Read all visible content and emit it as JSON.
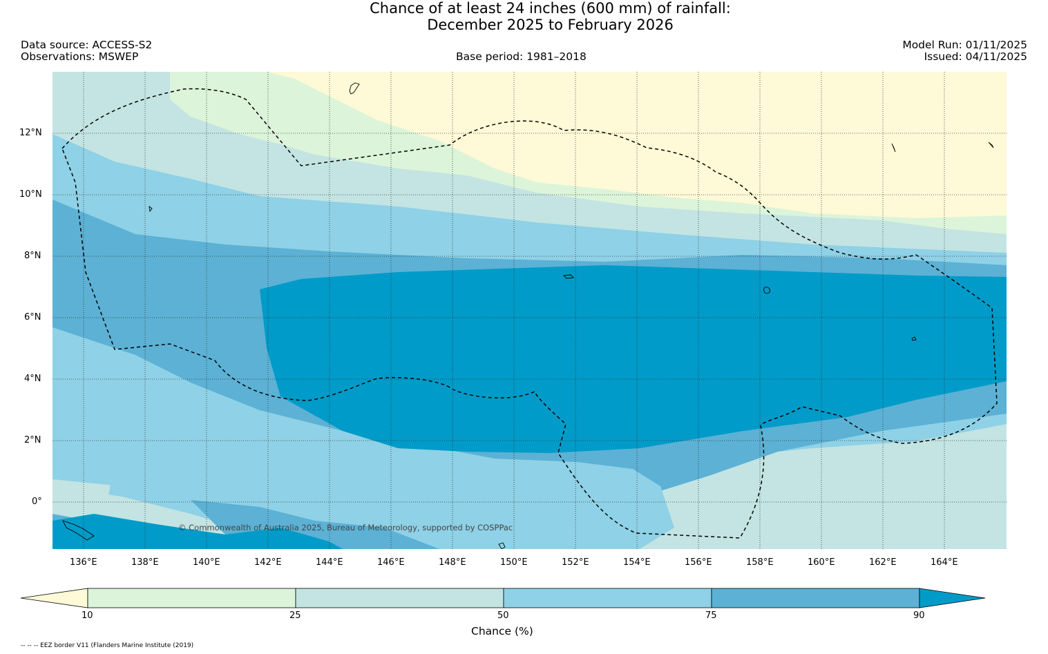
{
  "header": {
    "title_line1": "Chance of at least 24 inches (600  mm) of rainfall:",
    "title_line2": "December 2025 to February 2026",
    "data_source": "Data source: ACCESS-S2",
    "observations": "Observations: MSWEP",
    "base_period": "Base period: 1981–2018",
    "model_run": "Model Run: 01/11/2025",
    "issued": "Issued: 04/11/2025"
  },
  "map": {
    "lon_labels": [
      "136°E",
      "138°E",
      "140°E",
      "142°E",
      "144°E",
      "146°E",
      "148°E",
      "150°E",
      "152°E",
      "154°E",
      "156°E",
      "158°E",
      "160°E",
      "162°E",
      "164°E"
    ],
    "lat_labels": [
      "12°N",
      "10°N",
      "8°N",
      "6°N",
      "4°N",
      "2°N",
      "0°"
    ],
    "credit": "© Commonwealth of Australia 2025, Bureau of Meteorology, supported by COSPPac"
  },
  "colorbar": {
    "title": "Chance (%)",
    "ticks": [
      "10",
      "25",
      "50",
      "75",
      "90"
    ],
    "colors": [
      "#fef9d6",
      "#dcf4d9",
      "#c3e4e3",
      "#8fd1e6",
      "#5cb1d5",
      "#009bc8"
    ]
  },
  "footnote": "-- -- -- EEZ border V11 (Flanders Marine Institute (2019)"
}
